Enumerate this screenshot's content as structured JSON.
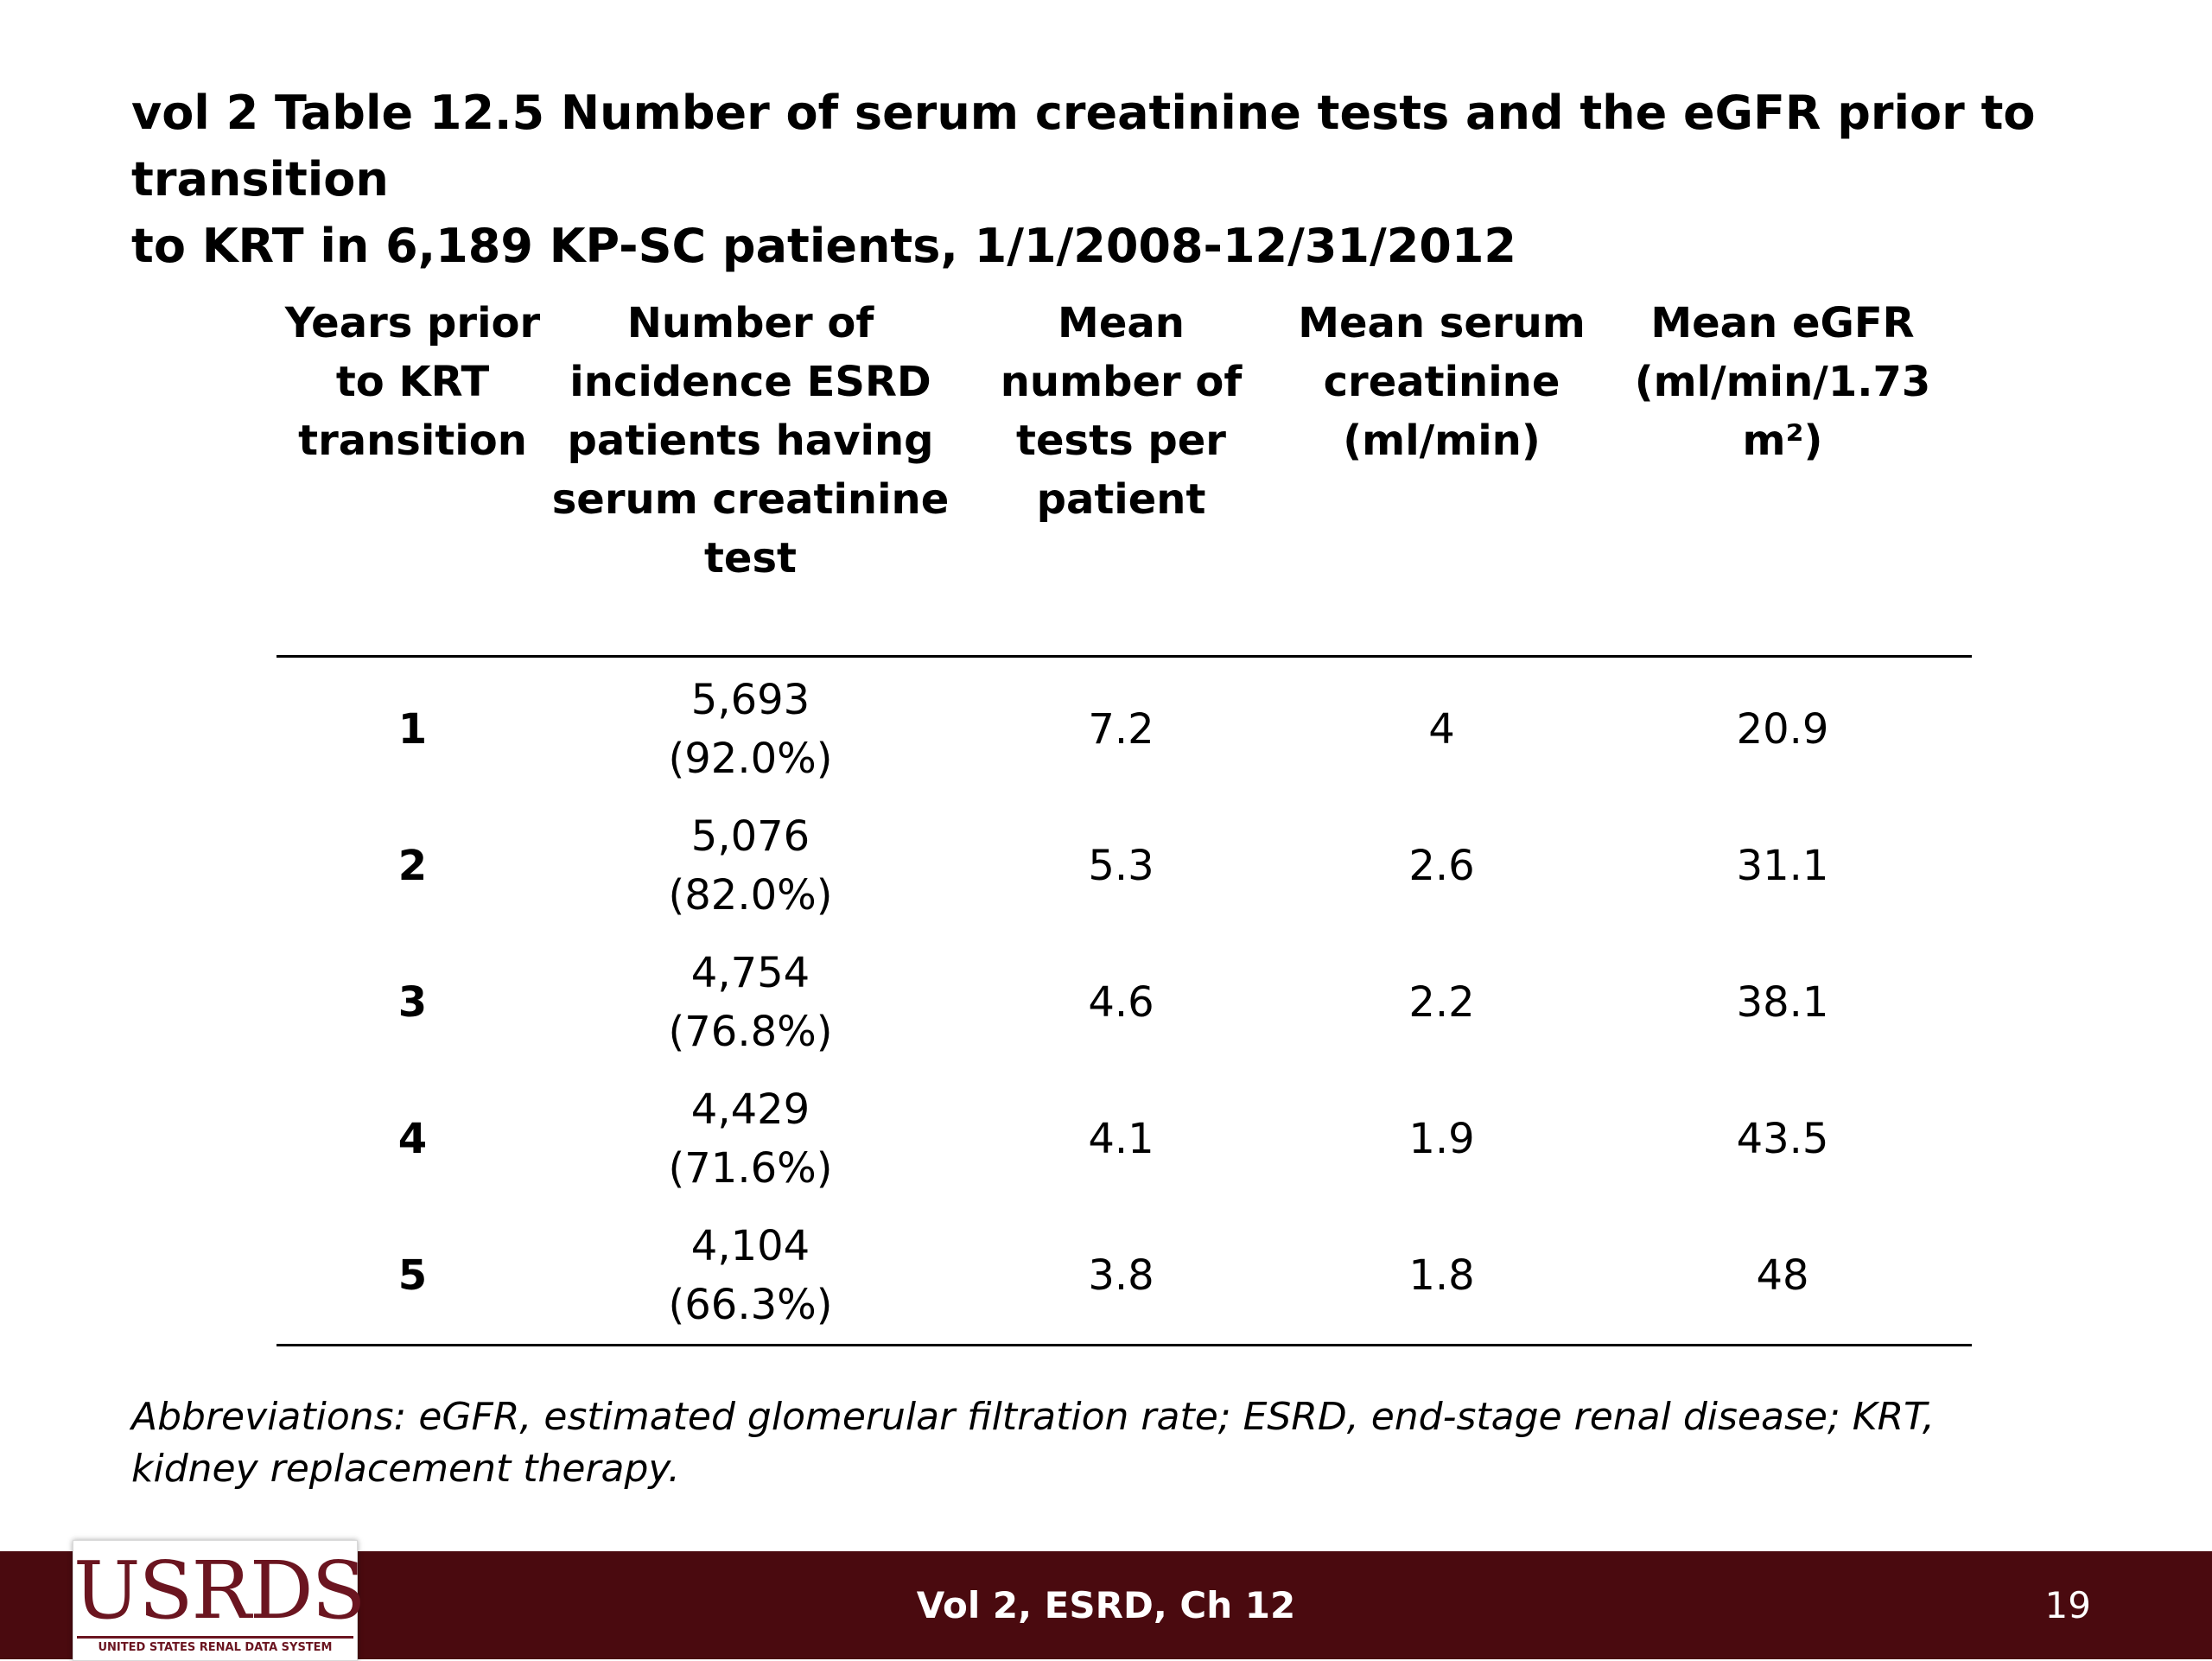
{
  "slide": {
    "title": "vol 2 Table 12.5  Number of serum creatinine tests and the eGFR prior to transition\nto KRT in 6,189 KP-SC patients, 1/1/2008-12/31/2012",
    "abbreviations": "Abbreviations: eGFR, estimated glomerular filtration rate; ESRD, end-stage renal disease; KRT, kidney replacement therapy."
  },
  "table": {
    "headers": [
      "Years prior\nto KRT\ntransition",
      "Number of\nincidence ESRD\npatients having\nserum creatinine\ntest",
      "Mean\nnumber of\ntests per\npatient",
      "Mean serum\ncreatinine\n(ml/min)",
      "Mean eGFR\n(ml/min/1.73\nm²)"
    ],
    "rows": [
      [
        "1",
        "5,693\n(92.0%)",
        "7.2",
        "4",
        "20.9"
      ],
      [
        "2",
        "5,076\n(82.0%)",
        "5.3",
        "2.6",
        "31.1"
      ],
      [
        "3",
        "4,754\n(76.8%)",
        "4.6",
        "2.2",
        "38.1"
      ],
      [
        "4",
        "4,429\n(71.6%)",
        "4.1",
        "1.9",
        "43.5"
      ],
      [
        "5",
        "4,104\n(66.3%)",
        "3.8",
        "1.8",
        "48"
      ]
    ]
  },
  "logo": {
    "wordmark": "USRDS",
    "subtitle": "UNITED STATES RENAL DATA SYSTEM"
  },
  "footer": {
    "label": "Vol 2, ESRD, Ch 12",
    "page_number": "19",
    "background_color": "#4a0a0f",
    "logo_color": "#6b1520"
  }
}
